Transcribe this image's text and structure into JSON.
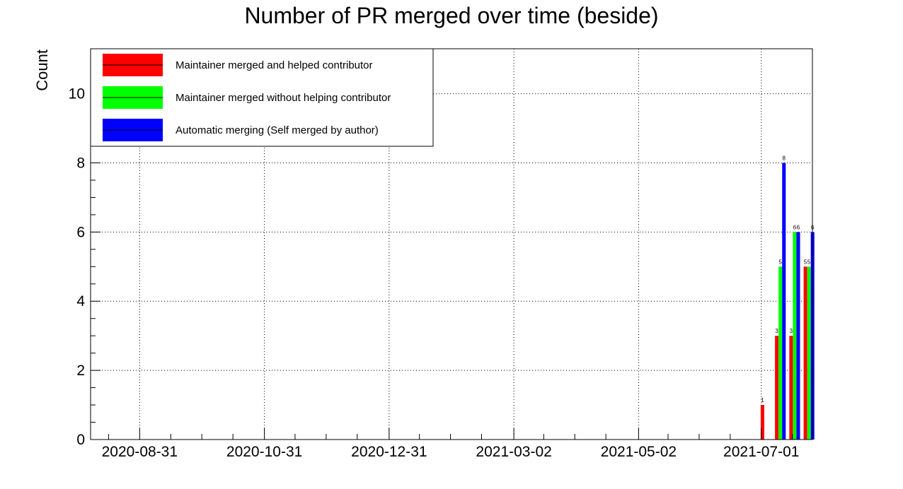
{
  "chart_data": {
    "type": "bar",
    "title": "Number of PR merged over time (beside)",
    "ylabel": "Count",
    "xlabel": "",
    "ylim": [
      0,
      11.3
    ],
    "yticks": [
      0,
      2,
      4,
      6,
      8,
      10
    ],
    "x_axis": {
      "type": "date",
      "range": [
        "2020-08-07",
        "2021-07-26"
      ],
      "tick_labels": [
        "2020-08-31",
        "2020-10-31",
        "2020-12-31",
        "2021-03-02",
        "2021-05-02",
        "2021-07-01"
      ]
    },
    "grid": true,
    "legend_position": "top-left",
    "categories": [
      "2021-06-30",
      "2021-07-07",
      "2021-07-14",
      "2021-07-21"
    ],
    "series": [
      {
        "name": "Maintainer merged and helped contributor",
        "color": "#ff0000",
        "values": [
          1,
          3,
          3,
          5
        ]
      },
      {
        "name": "Maintainer merged without helping contributor",
        "color": "#00ff00",
        "values": [
          0,
          5,
          6,
          5
        ]
      },
      {
        "name": "Automatic merging (Self merged by author)",
        "color": "#0000ff",
        "values": [
          0,
          8,
          6,
          6
        ]
      }
    ],
    "data_labels": true
  }
}
